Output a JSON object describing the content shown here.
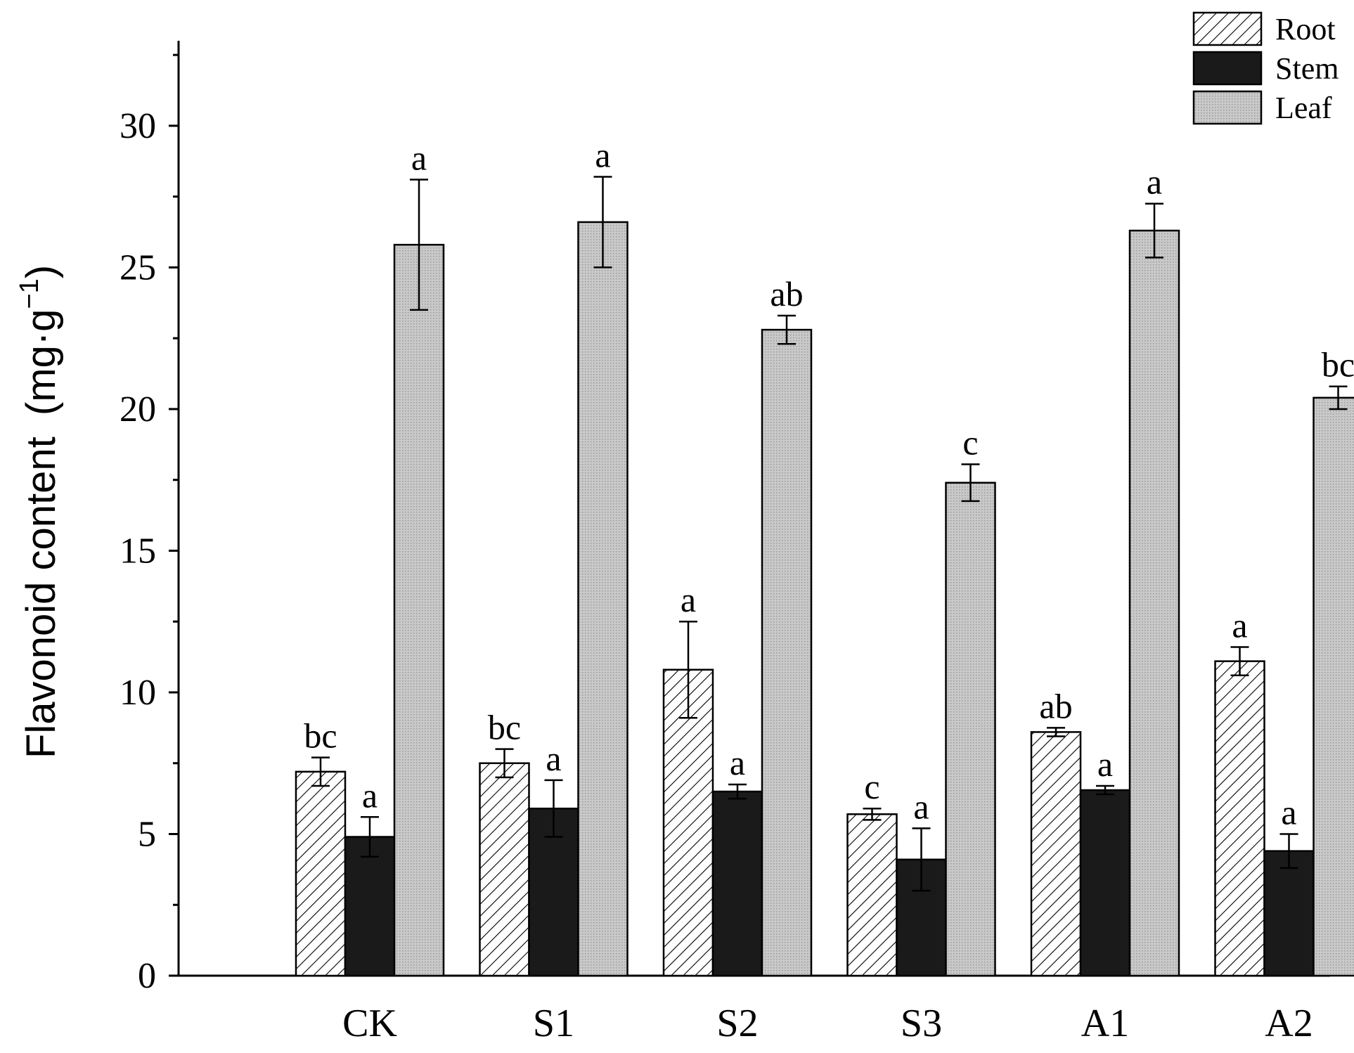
{
  "chart_data": {
    "type": "bar",
    "categories": [
      "CK",
      "S1",
      "S2",
      "S3",
      "A1",
      "A2"
    ],
    "ylabel": "Flavonoid content",
    "ylabel_unit_base": "(mg·g",
    "ylabel_unit_exp": "−1",
    "ylabel_unit_close": ")",
    "ylim": [
      0,
      33
    ],
    "yticks": [
      0,
      5,
      10,
      15,
      20,
      25,
      30
    ],
    "legend_position": "top-right",
    "series": [
      {
        "name": "Root",
        "fill": "hatch",
        "values": [
          7.2,
          7.5,
          10.8,
          5.7,
          8.6,
          11.1
        ],
        "errors": [
          0.5,
          0.5,
          1.7,
          0.2,
          0.15,
          0.5
        ],
        "letters": [
          "bc",
          "bc",
          "a",
          "c",
          "ab",
          "a"
        ]
      },
      {
        "name": "Stem",
        "fill": "#1a1a1a",
        "values": [
          4.9,
          5.9,
          6.5,
          4.1,
          6.55,
          4.4
        ],
        "errors": [
          0.7,
          1.0,
          0.25,
          1.1,
          0.15,
          0.6
        ],
        "letters": [
          "a",
          "a",
          "a",
          "a",
          "a",
          "a"
        ]
      },
      {
        "name": "Leaf",
        "fill": "#c8c8c8",
        "values": [
          25.8,
          26.6,
          22.8,
          17.4,
          26.3,
          20.4
        ],
        "errors": [
          2.3,
          1.6,
          0.5,
          0.65,
          0.95,
          0.4
        ],
        "letters": [
          "a",
          "a",
          "ab",
          "c",
          "a",
          "bc"
        ]
      }
    ]
  }
}
